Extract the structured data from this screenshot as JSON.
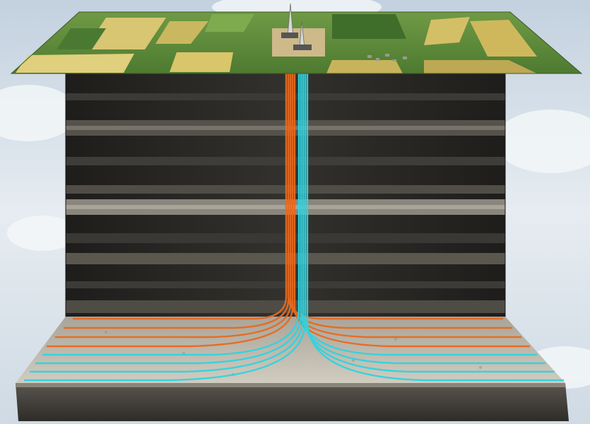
{
  "scene": {
    "description_name": "fracking-well-cross-section",
    "surface": {
      "fields": [
        "wheat-field",
        "grass-field",
        "pasture-field"
      ],
      "rig_count": 2,
      "village": true
    },
    "subsurface": {
      "rock_layers": 9,
      "target_formation": "shale-reservoir"
    },
    "wells": {
      "orange_laterals_left": 4,
      "orange_laterals_right": 4,
      "cyan_laterals_left": 4,
      "cyan_laterals_right": 4
    },
    "colors": {
      "sky_top": "#c9d6e2",
      "sky_bottom": "#eef2f5",
      "field_green": "#5c8d3c",
      "field_yellow": "#d6c56c",
      "rock_dark": "#2b2a27",
      "rock_light": "#8a8780",
      "reservoir": "#b8b3a8",
      "pipe_orange": "#e86a1f",
      "pipe_cyan": "#2fd4e0"
    }
  }
}
